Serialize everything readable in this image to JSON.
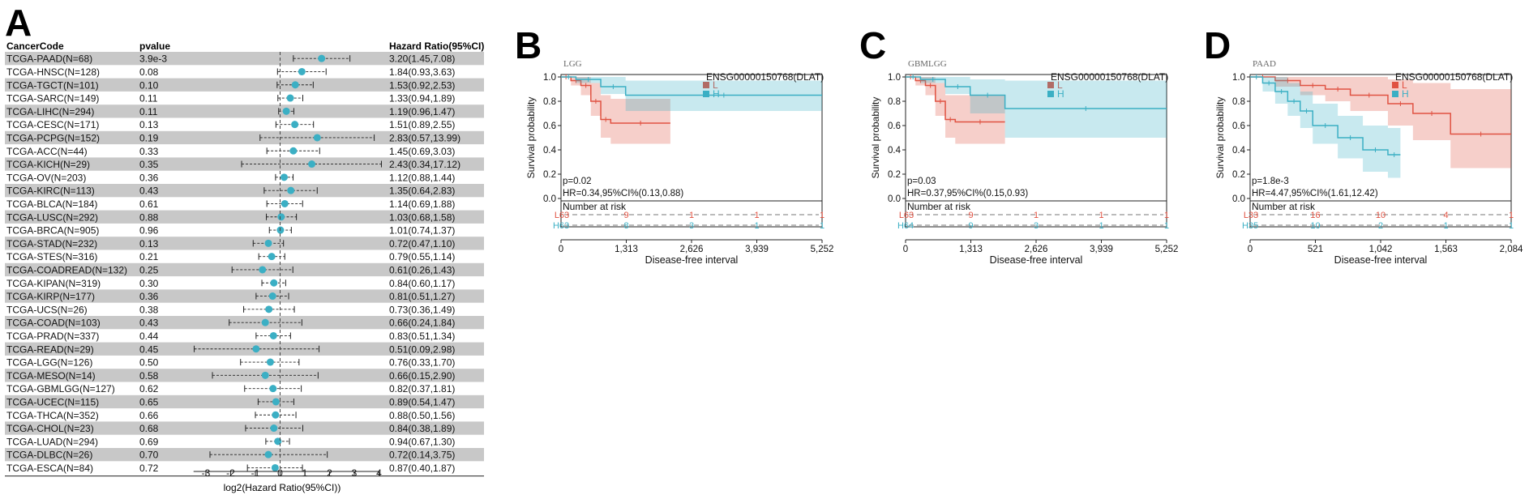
{
  "forest": {
    "panel_label": "A",
    "col_cancer": "CancerCode",
    "col_pvalue": "pvalue",
    "col_hr": "Hazard Ratio(95%CI)",
    "x_ticks": [
      "-3",
      "-2",
      "-1",
      "0",
      "1",
      "2",
      "3",
      "4"
    ],
    "x_label": "log2(Hazard Ratio(95%CI))",
    "colors": {
      "point": "#3bafc4",
      "stripe": "#c8c8c8",
      "whisker": "#222222",
      "zero": "#444444"
    }
  },
  "chart_data": [
    {
      "type": "forest",
      "xlabel": "log2(Hazard Ratio(95%CI))",
      "xlim": [
        -3.5,
        4.2
      ],
      "rows": [
        {
          "code": "TCGA-PAAD(N=68)",
          "pvalue": "3.9e-3",
          "hr_text": "3.20(1.45,7.08)",
          "hr": 3.2,
          "lo": 1.45,
          "hi": 7.08
        },
        {
          "code": "TCGA-HNSC(N=128)",
          "pvalue": "0.08",
          "hr_text": "1.84(0.93,3.63)",
          "hr": 1.84,
          "lo": 0.93,
          "hi": 3.63
        },
        {
          "code": "TCGA-TGCT(N=101)",
          "pvalue": "0.10",
          "hr_text": "1.53(0.92,2.53)",
          "hr": 1.53,
          "lo": 0.92,
          "hi": 2.53
        },
        {
          "code": "TCGA-SARC(N=149)",
          "pvalue": "0.11",
          "hr_text": "1.33(0.94,1.89)",
          "hr": 1.33,
          "lo": 0.94,
          "hi": 1.89
        },
        {
          "code": "TCGA-LIHC(N=294)",
          "pvalue": "0.11",
          "hr_text": "1.19(0.96,1.47)",
          "hr": 1.19,
          "lo": 0.96,
          "hi": 1.47
        },
        {
          "code": "TCGA-CESC(N=171)",
          "pvalue": "0.13",
          "hr_text": "1.51(0.89,2.55)",
          "hr": 1.51,
          "lo": 0.89,
          "hi": 2.55
        },
        {
          "code": "TCGA-PCPG(N=152)",
          "pvalue": "0.19",
          "hr_text": "2.83(0.57,13.99)",
          "hr": 2.83,
          "lo": 0.57,
          "hi": 13.99
        },
        {
          "code": "TCGA-ACC(N=44)",
          "pvalue": "0.33",
          "hr_text": "1.45(0.69,3.03)",
          "hr": 1.45,
          "lo": 0.69,
          "hi": 3.03
        },
        {
          "code": "TCGA-KICH(N=29)",
          "pvalue": "0.35",
          "hr_text": "2.43(0.34,17.12)",
          "hr": 2.43,
          "lo": 0.34,
          "hi": 17.12
        },
        {
          "code": "TCGA-OV(N=203)",
          "pvalue": "0.36",
          "hr_text": "1.12(0.88,1.44)",
          "hr": 1.12,
          "lo": 0.88,
          "hi": 1.44
        },
        {
          "code": "TCGA-KIRC(N=113)",
          "pvalue": "0.43",
          "hr_text": "1.35(0.64,2.83)",
          "hr": 1.35,
          "lo": 0.64,
          "hi": 2.83
        },
        {
          "code": "TCGA-BLCA(N=184)",
          "pvalue": "0.61",
          "hr_text": "1.14(0.69,1.88)",
          "hr": 1.14,
          "lo": 0.69,
          "hi": 1.88
        },
        {
          "code": "TCGA-LUSC(N=292)",
          "pvalue": "0.88",
          "hr_text": "1.03(0.68,1.58)",
          "hr": 1.03,
          "lo": 0.68,
          "hi": 1.58
        },
        {
          "code": "TCGA-BRCA(N=905)",
          "pvalue": "0.96",
          "hr_text": "1.01(0.74,1.37)",
          "hr": 1.01,
          "lo": 0.74,
          "hi": 1.37
        },
        {
          "code": "TCGA-STAD(N=232)",
          "pvalue": "0.13",
          "hr_text": "0.72(0.47,1.10)",
          "hr": 0.72,
          "lo": 0.47,
          "hi": 1.1
        },
        {
          "code": "TCGA-STES(N=316)",
          "pvalue": "0.21",
          "hr_text": "0.79(0.55,1.14)",
          "hr": 0.79,
          "lo": 0.55,
          "hi": 1.14
        },
        {
          "code": "TCGA-COADREAD(N=132)",
          "pvalue": "0.25",
          "hr_text": "0.61(0.26,1.43)",
          "hr": 0.61,
          "lo": 0.26,
          "hi": 1.43
        },
        {
          "code": "TCGA-KIPAN(N=319)",
          "pvalue": "0.30",
          "hr_text": "0.84(0.60,1.17)",
          "hr": 0.84,
          "lo": 0.6,
          "hi": 1.17
        },
        {
          "code": "TCGA-KIRP(N=177)",
          "pvalue": "0.36",
          "hr_text": "0.81(0.51,1.27)",
          "hr": 0.81,
          "lo": 0.51,
          "hi": 1.27
        },
        {
          "code": "TCGA-UCS(N=26)",
          "pvalue": "0.38",
          "hr_text": "0.73(0.36,1.49)",
          "hr": 0.73,
          "lo": 0.36,
          "hi": 1.49
        },
        {
          "code": "TCGA-COAD(N=103)",
          "pvalue": "0.43",
          "hr_text": "0.66(0.24,1.84)",
          "hr": 0.66,
          "lo": 0.24,
          "hi": 1.84
        },
        {
          "code": "TCGA-PRAD(N=337)",
          "pvalue": "0.44",
          "hr_text": "0.83(0.51,1.34)",
          "hr": 0.83,
          "lo": 0.51,
          "hi": 1.34
        },
        {
          "code": "TCGA-READ(N=29)",
          "pvalue": "0.45",
          "hr_text": "0.51(0.09,2.98)",
          "hr": 0.51,
          "lo": 0.09,
          "hi": 2.98
        },
        {
          "code": "TCGA-LGG(N=126)",
          "pvalue": "0.50",
          "hr_text": "0.76(0.33,1.70)",
          "hr": 0.76,
          "lo": 0.33,
          "hi": 1.7
        },
        {
          "code": "TCGA-MESO(N=14)",
          "pvalue": "0.58",
          "hr_text": "0.66(0.15,2.90)",
          "hr": 0.66,
          "lo": 0.15,
          "hi": 2.9
        },
        {
          "code": "TCGA-GBMLGG(N=127)",
          "pvalue": "0.62",
          "hr_text": "0.82(0.37,1.81)",
          "hr": 0.82,
          "lo": 0.37,
          "hi": 1.81
        },
        {
          "code": "TCGA-UCEC(N=115)",
          "pvalue": "0.65",
          "hr_text": "0.89(0.54,1.47)",
          "hr": 0.89,
          "lo": 0.54,
          "hi": 1.47
        },
        {
          "code": "TCGA-THCA(N=352)",
          "pvalue": "0.66",
          "hr_text": "0.88(0.50,1.56)",
          "hr": 0.88,
          "lo": 0.5,
          "hi": 1.56
        },
        {
          "code": "TCGA-CHOL(N=23)",
          "pvalue": "0.68",
          "hr_text": "0.84(0.38,1.89)",
          "hr": 0.84,
          "lo": 0.38,
          "hi": 1.89
        },
        {
          "code": "TCGA-LUAD(N=294)",
          "pvalue": "0.69",
          "hr_text": "0.94(0.67,1.30)",
          "hr": 0.94,
          "lo": 0.67,
          "hi": 1.3
        },
        {
          "code": "TCGA-DLBC(N=26)",
          "pvalue": "0.70",
          "hr_text": "0.72(0.14,3.75)",
          "hr": 0.72,
          "lo": 0.14,
          "hi": 3.75
        },
        {
          "code": "TCGA-ESCA(N=84)",
          "pvalue": "0.72",
          "hr_text": "0.87(0.40,1.87)",
          "hr": 0.87,
          "lo": 0.4,
          "hi": 1.87
        }
      ]
    },
    {
      "type": "line",
      "panel": "B",
      "title": "LGG",
      "gene": "ENSG00000150768(DLAT)",
      "xlabel": "Disease-free interval",
      "ylabel": "Survival probability",
      "xlim": [
        0,
        5252
      ],
      "ylim": [
        0,
        1
      ],
      "x_ticks": [
        0,
        1313,
        2626,
        3939,
        5252
      ],
      "x_tick_labels": [
        "0",
        "1,313",
        "2,626",
        "3,939",
        "5,252"
      ],
      "y_ticks": [
        "0.0",
        "0.2",
        "0.4",
        "0.6",
        "0.8",
        "1.0"
      ],
      "pvalue_text": "p=0.02",
      "hr_text": "HR=0.34,95%CI%(0.13,0.88)",
      "risk_title": "Number at risk",
      "series": [
        {
          "name": "L",
          "color": "#e05242",
          "x": [
            0,
            200,
            400,
            600,
            800,
            1000,
            2200
          ],
          "y": [
            1.0,
            0.97,
            0.93,
            0.8,
            0.65,
            0.62,
            0.62
          ],
          "ci_low": [
            1.0,
            0.93,
            0.85,
            0.68,
            0.5,
            0.45,
            0.45
          ],
          "ci_high": [
            1.0,
            1.0,
            1.0,
            0.95,
            0.85,
            0.82,
            0.82
          ],
          "risk": [
            "63",
            "9",
            "1",
            "1",
            "1"
          ]
        },
        {
          "name": "H",
          "color": "#3bafc4",
          "x": [
            0,
            300,
            800,
            1300,
            5252
          ],
          "y": [
            1.0,
            0.98,
            0.92,
            0.85,
            0.85
          ],
          "ci_low": [
            1.0,
            0.95,
            0.86,
            0.72,
            0.72
          ],
          "ci_high": [
            1.0,
            1.0,
            1.0,
            0.97,
            0.97
          ],
          "risk": [
            "63",
            "8",
            "3",
            "1",
            "1"
          ]
        }
      ]
    },
    {
      "type": "line",
      "panel": "C",
      "title": "GBMLGG",
      "gene": "ENSG00000150768(DLAT)",
      "xlabel": "Disease-free interval",
      "ylabel": "Survival probability",
      "xlim": [
        0,
        5252
      ],
      "ylim": [
        0,
        1
      ],
      "x_ticks": [
        0,
        1313,
        2626,
        3939,
        5252
      ],
      "x_tick_labels": [
        "0",
        "1,313",
        "2,626",
        "3,939",
        "5,252"
      ],
      "y_ticks": [
        "0.0",
        "0.2",
        "0.4",
        "0.6",
        "0.8",
        "1.0"
      ],
      "pvalue_text": "p=0.03",
      "hr_text": "HR=0.37,95%CI%(0.15,0.93)",
      "risk_title": "Number at risk",
      "series": [
        {
          "name": "L",
          "color": "#e05242",
          "x": [
            0,
            200,
            400,
            600,
            800,
            1000,
            2000
          ],
          "y": [
            1.0,
            0.97,
            0.93,
            0.8,
            0.65,
            0.63,
            0.63
          ],
          "ci_low": [
            1.0,
            0.93,
            0.85,
            0.68,
            0.5,
            0.45,
            0.45
          ],
          "ci_high": [
            1.0,
            1.0,
            1.0,
            0.95,
            0.85,
            0.85,
            0.85
          ],
          "risk": [
            "63",
            "9",
            "1",
            "1",
            "1"
          ]
        },
        {
          "name": "H",
          "color": "#3bafc4",
          "x": [
            0,
            300,
            800,
            1300,
            2000,
            5252
          ],
          "y": [
            1.0,
            0.98,
            0.92,
            0.85,
            0.74,
            0.74
          ],
          "ci_low": [
            1.0,
            0.95,
            0.86,
            0.7,
            0.5,
            0.5
          ],
          "ci_high": [
            1.0,
            1.0,
            1.0,
            0.98,
            0.97,
            0.97
          ],
          "risk": [
            "64",
            "9",
            "3",
            "1",
            "1"
          ]
        }
      ]
    },
    {
      "type": "line",
      "panel": "D",
      "title": "PAAD",
      "gene": "ENSG00000150768(DLAT)",
      "xlabel": "Disease-free interval",
      "ylabel": "Survival probability",
      "xlim": [
        0,
        2084
      ],
      "ylim": [
        0,
        1
      ],
      "x_ticks": [
        0,
        521,
        1042,
        1563,
        2084
      ],
      "x_tick_labels": [
        "0",
        "521",
        "1,042",
        "1,563",
        "2,084"
      ],
      "y_ticks": [
        "0.0",
        "0.2",
        "0.4",
        "0.6",
        "0.8",
        "1.0"
      ],
      "pvalue_text": "p=1.8e-3",
      "hr_text": "HR=4.47,95%CI%(1.61,12.42)",
      "risk_title": "Number at risk",
      "series": [
        {
          "name": "L",
          "color": "#e05242",
          "x": [
            0,
            200,
            400,
            600,
            800,
            1100,
            1300,
            1600,
            2084
          ],
          "y": [
            1.0,
            0.97,
            0.93,
            0.9,
            0.85,
            0.78,
            0.7,
            0.53,
            0.53
          ],
          "ci_low": [
            1.0,
            0.92,
            0.85,
            0.8,
            0.72,
            0.6,
            0.48,
            0.25,
            0.25
          ],
          "ci_high": [
            1.0,
            1.0,
            1.0,
            1.0,
            1.0,
            0.98,
            0.95,
            0.9,
            0.9
          ],
          "risk": [
            "33",
            "16",
            "10",
            "4",
            "1"
          ]
        },
        {
          "name": "H",
          "color": "#3bafc4",
          "x": [
            0,
            100,
            200,
            300,
            400,
            500,
            700,
            900,
            1100,
            1200
          ],
          "y": [
            1.0,
            0.95,
            0.88,
            0.8,
            0.72,
            0.6,
            0.5,
            0.4,
            0.36,
            0.36
          ],
          "ci_low": [
            1.0,
            0.88,
            0.78,
            0.68,
            0.58,
            0.45,
            0.33,
            0.22,
            0.17,
            0.17
          ],
          "ci_high": [
            1.0,
            1.0,
            1.0,
            0.95,
            0.88,
            0.78,
            0.68,
            0.6,
            0.58,
            0.58
          ],
          "risk": [
            "35",
            "10",
            "2",
            "1",
            "1"
          ]
        }
      ]
    }
  ]
}
